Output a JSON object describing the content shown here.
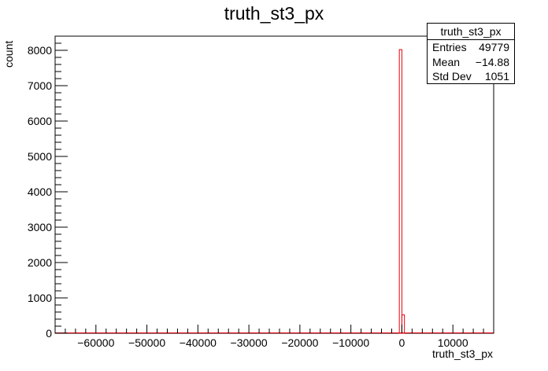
{
  "chart_data": {
    "type": "bar",
    "title": "truth_st3_px",
    "xlabel": "truth_st3_px",
    "ylabel": "count",
    "xlim": [
      -68000,
      18000
    ],
    "ylim": [
      0,
      8400
    ],
    "x_ticks": [
      -60000,
      -50000,
      -40000,
      -30000,
      -20000,
      -10000,
      0,
      10000
    ],
    "x_tick_labels": [
      "−60000",
      "−50000",
      "−40000",
      "−30000",
      "−20000",
      "−10000",
      "0",
      "10000"
    ],
    "y_ticks": [
      0,
      1000,
      2000,
      3000,
      4000,
      5000,
      6000,
      7000,
      8000
    ],
    "y_tick_labels": [
      "0",
      "1000",
      "2000",
      "3000",
      "4000",
      "5000",
      "6000",
      "7000",
      "8000"
    ],
    "series": [
      {
        "color": "#e8000b",
        "bin_edges": [
          -500,
          0,
          500
        ],
        "values": [
          8020,
          520
        ]
      }
    ],
    "grid": false,
    "legend": "none"
  },
  "stats_box": {
    "title": "truth_st3_px",
    "rows": [
      {
        "key": "Entries",
        "value": "49779"
      },
      {
        "key": "Mean",
        "value": "−14.88"
      },
      {
        "key": "Std Dev",
        "value": "1051"
      }
    ]
  }
}
